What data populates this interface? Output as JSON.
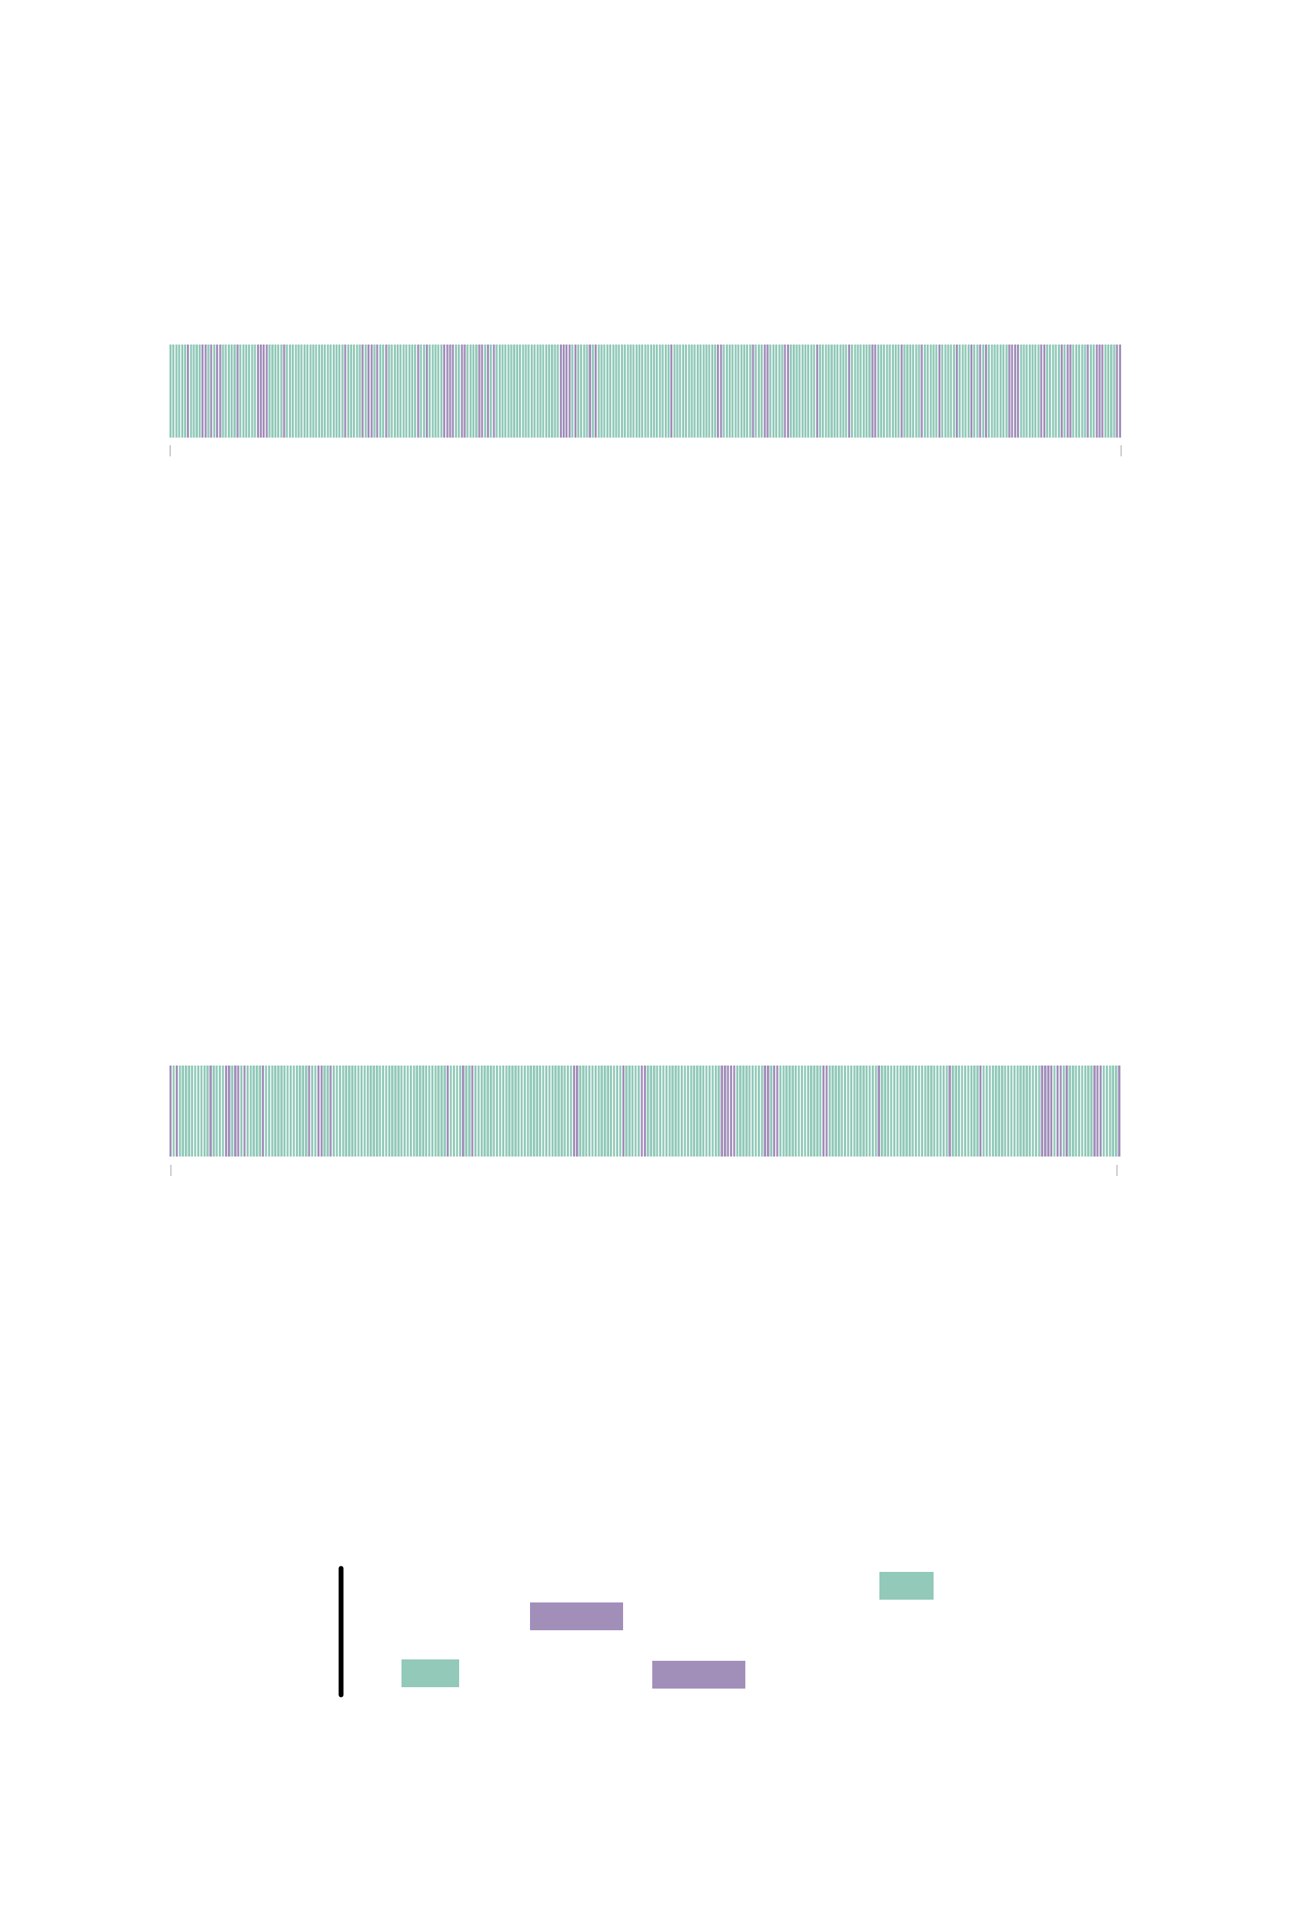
{
  "chart_data": [
    {
      "type": "barcode-strip",
      "title": "",
      "xlabel": "",
      "ylabel": "",
      "colors": {
        "a": "#92c9b9",
        "b": "#a18fba"
      },
      "sequence": "aaaaaabaaaabbababbaaaaabaaaaaabbbbaaaaabaaaaaaaaaaaaaaaaaaaabaaaaababbabaabaaaaaaaaaabaabaaaaabbbbaabbaaaabbababaaaaaaaaaaaaaaaaaaaaaabbbbabaaaababaaaaaaaaaaaaaaaaaaaaaaaaabaaaaaaaaaaaaaaabbaaaaaaaaaabaaabbaaaaabbaaaaaaaaabaaaaaaaaaabaaaaaaabbaaaaaaaabaaaaaabaaaaabaaaaabaaaabaababaaaaaaabbbbaaaaaaabbaaaaababbaaaaabaabbbaaaabb"
    },
    {
      "type": "barcode-strip",
      "title": "",
      "xlabel": "",
      "ylabel": "",
      "colors": {
        "a": "#92c9b9",
        "b": "#a18fba"
      },
      "sequence": "babaaaaaaaaaabaaaabbabbabaaaaabaaaaaaaaaaaaaabaabbaabaaaaaaaaaaaaaaaaaaaaaaaaaaaaaaaaaaaaabaaaabaabaaaaaaaaaaaaaaaaaaaaaaaaaaaaaaaabbaaaaaaaaaaaaaabaaaaabbaaaaaaaaaaaaaaaaaaaaaaaabbbbbaaaaaaaaabbabbaaaaaaaaaaaaaabbaaaaaaaaaaaaaaaabaaaaaaaaaaaaaaaaaaaaaabaaaaaaaaabaaaaaaaaaaaaaaaaaaabbbbabbabaaaaaaaabbbaaaaab"
    },
    {
      "type": "legend",
      "title": "",
      "legend_entries": [
        {
          "color": "#92c9b9"
        },
        {
          "color": "#a18fba"
        },
        {
          "color": "#92c9b9"
        },
        {
          "color": "#a18fba"
        }
      ]
    }
  ]
}
